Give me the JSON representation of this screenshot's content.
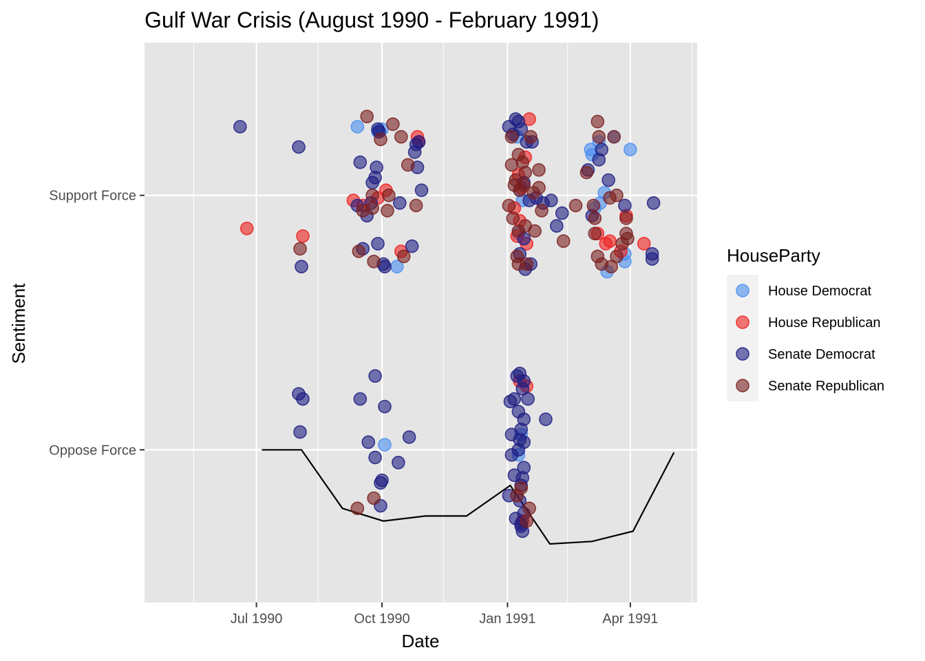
{
  "chart_data": {
    "type": "scatter",
    "title": "Gulf War Crisis (August 1990 - February 1991)",
    "xlabel": "Date",
    "ylabel": "Sentiment",
    "x_ticks": [
      {
        "date": "1990-07-01",
        "label": "Jul 1990"
      },
      {
        "date": "1990-10-01",
        "label": "Oct 1990"
      },
      {
        "date": "1991-01-01",
        "label": "Jan 1991"
      },
      {
        "date": "1991-04-01",
        "label": "Apr 1991"
      }
    ],
    "x_minor_ticks": [
      "1990-05-16",
      "1990-08-15",
      "1990-11-15",
      "1991-02-14",
      "1991-05-16"
    ],
    "xlim": [
      "1990-04-10",
      "1991-05-20"
    ],
    "y_categories": [
      "Oppose Force",
      "Support Force"
    ],
    "ylim": [
      -0.6,
      1.6
    ],
    "grid": true,
    "legend": {
      "title": "HouseParty",
      "position": "right",
      "entries": [
        {
          "name": "House Democrat",
          "color": "#4a8ef0"
        },
        {
          "name": "House Republican",
          "color": "#f02020"
        },
        {
          "name": "Senate Democrat",
          "color": "#1e1e82"
        },
        {
          "name": "Senate Republican",
          "color": "#7a2020"
        }
      ]
    },
    "trend_line": [
      [
        "1990-07-05",
        0.0
      ],
      [
        "1990-08-03",
        0.0
      ],
      [
        "1990-09-02",
        -0.23
      ],
      [
        "1990-10-02",
        -0.28
      ],
      [
        "1990-11-02",
        -0.26
      ],
      [
        "1990-12-02",
        -0.26
      ],
      [
        "1991-01-03",
        -0.14
      ],
      [
        "1991-02-01",
        -0.37
      ],
      [
        "1991-03-04",
        -0.36
      ],
      [
        "1991-04-03",
        -0.32
      ],
      [
        "1991-05-03",
        -0.01
      ]
    ],
    "series": [
      {
        "name": "House Democrat",
        "points": [
          [
            "1990-09-13",
            1.27
          ],
          [
            "1990-09-28",
            1.25
          ],
          [
            "1990-10-01",
            1.26
          ],
          [
            "1990-10-12",
            0.72
          ],
          [
            "1990-10-03",
            0.02
          ],
          [
            "1991-01-08",
            1.23
          ],
          [
            "1991-01-10",
            1.02
          ],
          [
            "1991-01-12",
            0.98
          ],
          [
            "1991-01-09",
            0.85
          ],
          [
            "1991-01-11",
            0.06
          ],
          [
            "1991-01-09",
            -0.02
          ],
          [
            "1991-03-03",
            1.18
          ],
          [
            "1991-03-04",
            1.16
          ],
          [
            "1991-03-09",
            1.21
          ],
          [
            "1991-03-20",
            1.23
          ],
          [
            "1991-04-01",
            1.18
          ],
          [
            "1991-03-13",
            1.01
          ],
          [
            "1991-03-10",
            0.97
          ],
          [
            "1991-03-15",
            0.7
          ],
          [
            "1991-03-28",
            0.74
          ],
          [
            "1991-03-28",
            0.77
          ],
          [
            "1991-03-06",
            0.95
          ]
        ]
      },
      {
        "name": "House Republican",
        "points": [
          [
            "1990-06-24",
            0.87
          ],
          [
            "1990-08-04",
            0.84
          ],
          [
            "1990-09-10",
            0.98
          ],
          [
            "1990-09-17",
            0.96
          ],
          [
            "1990-09-28",
            0.99
          ],
          [
            "1990-10-04",
            1.02
          ],
          [
            "1990-10-15",
            0.78
          ],
          [
            "1990-10-27",
            1.23
          ],
          [
            "1990-10-28",
            1.21
          ],
          [
            "1991-01-09",
            1.08
          ],
          [
            "1991-01-11",
            1.03
          ],
          [
            "1991-01-17",
            1.3
          ],
          [
            "1991-01-14",
            1.15
          ],
          [
            "1991-01-06",
            0.95
          ],
          [
            "1991-01-10",
            0.9
          ],
          [
            "1991-01-08",
            0.84
          ],
          [
            "1991-01-15",
            0.81
          ],
          [
            "1991-01-12",
            -0.28
          ],
          [
            "1991-01-10",
            0.27
          ],
          [
            "1991-01-15",
            0.25
          ],
          [
            "1991-03-08",
            0.85
          ],
          [
            "1991-03-14",
            0.81
          ],
          [
            "1991-03-17",
            0.82
          ],
          [
            "1991-03-25",
            0.78
          ],
          [
            "1991-03-29",
            0.92
          ],
          [
            "1991-04-11",
            0.81
          ]
        ]
      },
      {
        "name": "Senate Democrat",
        "points": [
          [
            "1990-06-19",
            1.27
          ],
          [
            "1990-08-01",
            1.19
          ],
          [
            "1990-08-03",
            0.72
          ],
          [
            "1990-08-01",
            0.22
          ],
          [
            "1990-08-04",
            0.2
          ],
          [
            "1990-08-02",
            0.07
          ],
          [
            "1990-09-15",
            1.13
          ],
          [
            "1990-09-27",
            1.11
          ],
          [
            "1990-09-26",
            1.07
          ],
          [
            "1990-09-24",
            1.05
          ],
          [
            "1990-09-23",
            0.97
          ],
          [
            "1990-09-13",
            0.96
          ],
          [
            "1990-09-20",
            0.92
          ],
          [
            "1990-09-29",
            1.25
          ],
          [
            "1990-09-28",
            1.26
          ],
          [
            "1990-09-17",
            0.79
          ],
          [
            "1990-09-28",
            0.81
          ],
          [
            "1990-10-02",
            0.73
          ],
          [
            "1990-10-03",
            0.72
          ],
          [
            "1990-10-14",
            0.97
          ],
          [
            "1990-10-25",
            1.17
          ],
          [
            "1990-10-26",
            1.2
          ],
          [
            "1990-10-28",
            1.21
          ],
          [
            "1990-10-27",
            1.11
          ],
          [
            "1990-10-30",
            1.02
          ],
          [
            "1990-10-23",
            0.8
          ],
          [
            "1990-09-26",
            0.29
          ],
          [
            "1990-09-15",
            0.2
          ],
          [
            "1990-10-03",
            0.17
          ],
          [
            "1990-10-21",
            0.05
          ],
          [
            "1990-09-21",
            0.03
          ],
          [
            "1990-09-26",
            -0.03
          ],
          [
            "1990-10-13",
            -0.05
          ],
          [
            "1990-10-01",
            -0.12
          ],
          [
            "1990-09-30",
            -0.13
          ],
          [
            "1990-09-30",
            -0.22
          ],
          [
            "1991-01-02",
            1.27
          ],
          [
            "1991-01-05",
            1.24
          ],
          [
            "1991-01-07",
            1.3
          ],
          [
            "1991-01-09",
            1.29
          ],
          [
            "1991-01-11",
            1.26
          ],
          [
            "1991-01-15",
            1.21
          ],
          [
            "1991-01-19",
            1.21
          ],
          [
            "1991-01-13",
            1.05
          ],
          [
            "1991-01-17",
            0.98
          ],
          [
            "1991-01-22",
            0.99
          ],
          [
            "1991-01-27",
            0.97
          ],
          [
            "1991-02-02",
            0.98
          ],
          [
            "1991-02-06",
            0.88
          ],
          [
            "1991-01-13",
            0.83
          ],
          [
            "1991-01-10",
            0.77
          ],
          [
            "1991-01-18",
            0.73
          ],
          [
            "1991-01-14",
            0.71
          ],
          [
            "1991-01-08",
            0.29
          ],
          [
            "1991-01-10",
            0.3
          ],
          [
            "1991-01-13",
            0.27
          ],
          [
            "1991-01-12",
            0.24
          ],
          [
            "1991-01-03",
            0.19
          ],
          [
            "1991-01-06",
            0.2
          ],
          [
            "1991-01-16",
            0.2
          ],
          [
            "1991-01-09",
            0.15
          ],
          [
            "1991-01-13",
            0.12
          ],
          [
            "1991-01-11",
            0.08
          ],
          [
            "1991-01-04",
            0.06
          ],
          [
            "1991-01-10",
            0.04
          ],
          [
            "1991-01-13",
            0.03
          ],
          [
            "1991-01-09",
            0.0
          ],
          [
            "1991-01-04",
            -0.02
          ],
          [
            "1991-01-13",
            -0.07
          ],
          [
            "1991-01-12",
            -0.11
          ],
          [
            "1991-01-06",
            -0.1
          ],
          [
            "1991-01-11",
            -0.14
          ],
          [
            "1991-01-02",
            -0.18
          ],
          [
            "1991-01-10",
            -0.2
          ],
          [
            "1991-01-13",
            -0.25
          ],
          [
            "1991-01-07",
            -0.27
          ],
          [
            "1991-01-11",
            -0.3
          ],
          [
            "1991-01-12",
            -0.32
          ],
          [
            "1991-01-11",
            -0.29
          ],
          [
            "1991-01-29",
            0.12
          ],
          [
            "1991-02-10",
            0.93
          ],
          [
            "1991-03-11",
            1.18
          ],
          [
            "1991-03-09",
            1.14
          ],
          [
            "1991-03-16",
            1.06
          ],
          [
            "1991-03-28",
            0.96
          ],
          [
            "1991-04-18",
            0.97
          ],
          [
            "1991-04-17",
            0.77
          ],
          [
            "1991-04-17",
            0.75
          ],
          [
            "1991-03-01",
            1.1
          ],
          [
            "1991-03-04",
            0.92
          ]
        ]
      },
      {
        "name": "Senate Republican",
        "points": [
          [
            "1990-08-02",
            0.79
          ],
          [
            "1990-09-14",
            0.78
          ],
          [
            "1990-09-20",
            1.31
          ],
          [
            "1990-09-17",
            0.94
          ],
          [
            "1990-09-24",
            0.95
          ],
          [
            "1990-09-25",
            0.74
          ],
          [
            "1990-09-24",
            1.0
          ],
          [
            "1990-09-30",
            1.22
          ],
          [
            "1990-10-09",
            1.28
          ],
          [
            "1990-10-15",
            1.23
          ],
          [
            "1990-10-20",
            1.12
          ],
          [
            "1990-10-26",
            0.96
          ],
          [
            "1990-10-17",
            0.76
          ],
          [
            "1990-09-25",
            -0.19
          ],
          [
            "1990-09-13",
            -0.23
          ],
          [
            "1990-10-06",
            1.0
          ],
          [
            "1990-10-05",
            0.94
          ],
          [
            "1991-01-04",
            1.23
          ],
          [
            "1991-01-09",
            1.16
          ],
          [
            "1991-01-12",
            1.13
          ],
          [
            "1991-01-18",
            1.23
          ],
          [
            "1991-01-04",
            1.12
          ],
          [
            "1991-01-07",
            1.06
          ],
          [
            "1991-01-14",
            1.09
          ],
          [
            "1991-01-20",
            1.01
          ],
          [
            "1991-01-24",
            1.1
          ],
          [
            "1991-01-26",
            0.94
          ],
          [
            "1991-01-02",
            0.96
          ],
          [
            "1991-01-05",
            0.91
          ],
          [
            "1991-01-09",
            0.86
          ],
          [
            "1991-01-14",
            0.88
          ],
          [
            "1991-01-21",
            0.86
          ],
          [
            "1991-01-10",
            1.02
          ],
          [
            "1991-01-13",
            1.04
          ],
          [
            "1991-01-08",
            0.76
          ],
          [
            "1991-01-09",
            0.73
          ],
          [
            "1991-01-15",
            0.73
          ],
          [
            "1991-01-06",
            1.04
          ],
          [
            "1991-01-15",
            -0.28
          ],
          [
            "1991-01-11",
            -0.15
          ],
          [
            "1991-01-08",
            -0.18
          ],
          [
            "1991-01-17",
            -0.23
          ],
          [
            "1991-01-24",
            1.03
          ],
          [
            "1991-02-11",
            0.82
          ],
          [
            "1991-02-20",
            0.96
          ],
          [
            "1991-02-28",
            1.09
          ],
          [
            "1991-03-08",
            1.29
          ],
          [
            "1991-03-09",
            1.23
          ],
          [
            "1991-03-20",
            1.23
          ],
          [
            "1991-03-05",
            0.96
          ],
          [
            "1991-03-17",
            0.99
          ],
          [
            "1991-03-22",
            1.0
          ],
          [
            "1991-03-06",
            0.91
          ],
          [
            "1991-03-29",
            0.91
          ],
          [
            "1991-03-29",
            0.85
          ],
          [
            "1991-03-30",
            0.83
          ],
          [
            "1991-03-08",
            0.76
          ],
          [
            "1991-03-11",
            0.73
          ],
          [
            "1991-03-18",
            0.72
          ],
          [
            "1991-03-22",
            0.76
          ],
          [
            "1991-03-26",
            0.81
          ],
          [
            "1991-03-06",
            0.85
          ]
        ]
      }
    ]
  }
}
